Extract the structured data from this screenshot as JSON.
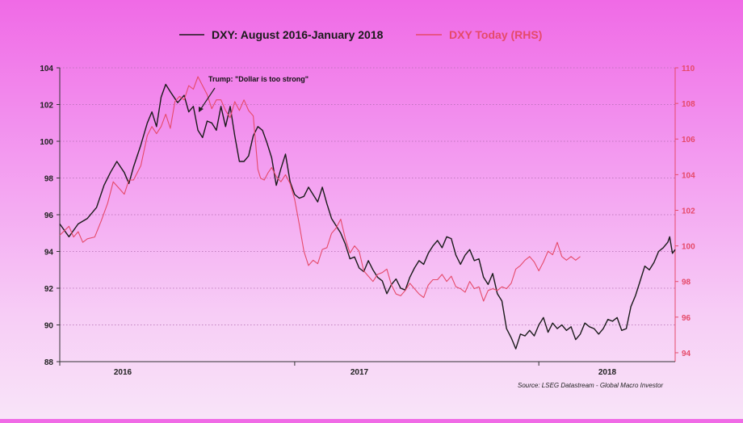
{
  "chart_data": {
    "type": "line",
    "legend": {
      "placement": "top-center"
    },
    "series": [
      {
        "name": "DXY: August 2016-January 2018",
        "color": "#1a1a1a",
        "axis": "left",
        "points": [
          [
            0,
            95.5
          ],
          [
            10,
            94.8
          ],
          [
            20,
            95.5
          ],
          [
            30,
            95.8
          ],
          [
            40,
            96.4
          ],
          [
            48,
            97.6
          ],
          [
            55,
            98.3
          ],
          [
            62,
            98.9
          ],
          [
            70,
            98.3
          ],
          [
            75,
            97.7
          ],
          [
            80,
            98.6
          ],
          [
            88,
            99.8
          ],
          [
            95,
            101.0
          ],
          [
            100,
            101.6
          ],
          [
            105,
            100.8
          ],
          [
            110,
            102.4
          ],
          [
            115,
            103.1
          ],
          [
            120,
            102.7
          ],
          [
            128,
            102.1
          ],
          [
            135,
            102.5
          ],
          [
            140,
            101.6
          ],
          [
            145,
            101.9
          ],
          [
            150,
            100.6
          ],
          [
            155,
            100.2
          ],
          [
            160,
            101.1
          ],
          [
            165,
            101.0
          ],
          [
            170,
            100.6
          ],
          [
            175,
            101.9
          ],
          [
            180,
            100.8
          ],
          [
            185,
            101.9
          ],
          [
            190,
            100.3
          ],
          [
            195,
            98.9
          ],
          [
            200,
            98.9
          ],
          [
            205,
            99.2
          ],
          [
            210,
            100.3
          ],
          [
            215,
            100.8
          ],
          [
            220,
            100.6
          ],
          [
            225,
            99.9
          ],
          [
            230,
            99.1
          ],
          [
            235,
            97.6
          ],
          [
            240,
            98.5
          ],
          [
            245,
            99.3
          ],
          [
            250,
            97.8
          ],
          [
            255,
            97.1
          ],
          [
            260,
            96.9
          ],
          [
            265,
            97.0
          ],
          [
            270,
            97.5
          ],
          [
            275,
            97.1
          ],
          [
            280,
            96.7
          ],
          [
            285,
            97.5
          ],
          [
            290,
            96.6
          ],
          [
            295,
            95.8
          ],
          [
            300,
            95.4
          ],
          [
            305,
            95.0
          ],
          [
            310,
            94.4
          ],
          [
            315,
            93.6
          ],
          [
            320,
            93.7
          ],
          [
            325,
            93.1
          ],
          [
            330,
            92.9
          ],
          [
            335,
            93.5
          ],
          [
            340,
            93.0
          ],
          [
            345,
            92.6
          ],
          [
            350,
            92.4
          ],
          [
            355,
            91.7
          ],
          [
            360,
            92.2
          ],
          [
            365,
            92.5
          ],
          [
            370,
            92.0
          ],
          [
            375,
            91.9
          ],
          [
            380,
            92.6
          ],
          [
            385,
            93.1
          ],
          [
            390,
            93.5
          ],
          [
            395,
            93.3
          ],
          [
            400,
            93.9
          ],
          [
            405,
            94.3
          ],
          [
            410,
            94.6
          ],
          [
            415,
            94.2
          ],
          [
            420,
            94.8
          ],
          [
            425,
            94.7
          ],
          [
            430,
            93.8
          ],
          [
            435,
            93.3
          ],
          [
            440,
            93.8
          ],
          [
            445,
            94.1
          ],
          [
            450,
            93.5
          ],
          [
            455,
            93.6
          ],
          [
            460,
            92.6
          ],
          [
            465,
            92.2
          ],
          [
            470,
            92.8
          ],
          [
            475,
            91.7
          ],
          [
            480,
            91.3
          ],
          [
            485,
            89.8
          ],
          [
            490,
            89.3
          ],
          [
            495,
            88.7
          ],
          [
            500,
            89.5
          ],
          [
            505,
            89.4
          ],
          [
            510,
            89.7
          ],
          [
            515,
            89.4
          ],
          [
            520,
            90.0
          ],
          [
            525,
            90.4
          ],
          [
            530,
            89.6
          ],
          [
            535,
            90.1
          ],
          [
            540,
            89.8
          ],
          [
            545,
            90.0
          ],
          [
            550,
            89.7
          ],
          [
            555,
            89.9
          ],
          [
            560,
            89.2
          ],
          [
            565,
            89.5
          ],
          [
            570,
            90.1
          ],
          [
            575,
            89.9
          ],
          [
            580,
            89.8
          ],
          [
            585,
            89.5
          ],
          [
            590,
            89.8
          ],
          [
            595,
            90.3
          ],
          [
            600,
            90.2
          ],
          [
            605,
            90.4
          ],
          [
            610,
            89.7
          ],
          [
            615,
            89.8
          ],
          [
            620,
            91.0
          ],
          [
            625,
            91.6
          ],
          [
            630,
            92.4
          ],
          [
            635,
            93.2
          ],
          [
            640,
            93.0
          ],
          [
            645,
            93.4
          ],
          [
            650,
            94.0
          ],
          [
            655,
            94.2
          ],
          [
            660,
            94.5
          ],
          [
            662,
            94.8
          ],
          [
            665,
            93.9
          ],
          [
            668,
            94.1
          ]
        ]
      },
      {
        "name": "DXY Today (RHS)",
        "color": "#e54a6a",
        "axis": "right",
        "points": [
          [
            0,
            100.6
          ],
          [
            10,
            101.1
          ],
          [
            15,
            100.5
          ],
          [
            20,
            100.8
          ],
          [
            25,
            100.2
          ],
          [
            30,
            100.4
          ],
          [
            38,
            100.5
          ],
          [
            45,
            101.4
          ],
          [
            52,
            102.4
          ],
          [
            58,
            103.6
          ],
          [
            65,
            103.2
          ],
          [
            70,
            102.9
          ],
          [
            75,
            103.7
          ],
          [
            80,
            103.7
          ],
          [
            88,
            104.5
          ],
          [
            95,
            106.2
          ],
          [
            100,
            106.7
          ],
          [
            105,
            106.3
          ],
          [
            110,
            106.7
          ],
          [
            115,
            107.4
          ],
          [
            120,
            106.6
          ],
          [
            125,
            108.1
          ],
          [
            130,
            108.4
          ],
          [
            135,
            108.2
          ],
          [
            140,
            109.0
          ],
          [
            145,
            108.8
          ],
          [
            150,
            109.5
          ],
          [
            155,
            109.0
          ],
          [
            160,
            108.5
          ],
          [
            165,
            107.7
          ],
          [
            170,
            108.2
          ],
          [
            175,
            108.2
          ],
          [
            180,
            107.6
          ],
          [
            185,
            107.2
          ],
          [
            190,
            108.1
          ],
          [
            195,
            107.6
          ],
          [
            200,
            108.2
          ],
          [
            205,
            107.6
          ],
          [
            210,
            107.3
          ],
          [
            215,
            104.3
          ],
          [
            218,
            103.8
          ],
          [
            222,
            103.7
          ],
          [
            226,
            104.1
          ],
          [
            230,
            104.4
          ],
          [
            235,
            103.9
          ],
          [
            240,
            103.6
          ],
          [
            245,
            104.0
          ],
          [
            250,
            103.5
          ],
          [
            255,
            102.6
          ],
          [
            260,
            101.2
          ],
          [
            265,
            99.7
          ],
          [
            270,
            98.9
          ],
          [
            275,
            99.2
          ],
          [
            280,
            99.0
          ],
          [
            285,
            99.8
          ],
          [
            290,
            99.9
          ],
          [
            295,
            100.7
          ],
          [
            300,
            101.0
          ],
          [
            305,
            101.5
          ],
          [
            310,
            100.4
          ],
          [
            315,
            99.6
          ],
          [
            320,
            100.0
          ],
          [
            325,
            99.7
          ],
          [
            330,
            98.6
          ],
          [
            335,
            98.3
          ],
          [
            340,
            98.0
          ],
          [
            345,
            98.4
          ],
          [
            350,
            98.5
          ],
          [
            355,
            98.7
          ],
          [
            360,
            97.8
          ],
          [
            365,
            97.3
          ],
          [
            370,
            97.2
          ],
          [
            375,
            97.5
          ],
          [
            380,
            97.9
          ],
          [
            385,
            97.6
          ],
          [
            390,
            97.3
          ],
          [
            395,
            97.1
          ],
          [
            400,
            97.8
          ],
          [
            405,
            98.1
          ],
          [
            410,
            98.1
          ],
          [
            415,
            98.4
          ],
          [
            420,
            98.0
          ],
          [
            425,
            98.3
          ],
          [
            430,
            97.7
          ],
          [
            435,
            97.6
          ],
          [
            440,
            97.4
          ],
          [
            445,
            98.0
          ],
          [
            450,
            97.6
          ],
          [
            455,
            97.7
          ],
          [
            460,
            96.9
          ],
          [
            465,
            97.5
          ],
          [
            470,
            97.6
          ],
          [
            475,
            97.5
          ],
          [
            480,
            97.7
          ],
          [
            485,
            97.6
          ],
          [
            490,
            97.9
          ],
          [
            495,
            98.7
          ],
          [
            500,
            98.9
          ],
          [
            505,
            99.2
          ],
          [
            510,
            99.4
          ],
          [
            515,
            99.1
          ],
          [
            520,
            98.6
          ],
          [
            525,
            99.1
          ],
          [
            530,
            99.7
          ],
          [
            535,
            99.5
          ],
          [
            540,
            100.2
          ],
          [
            545,
            99.4
          ],
          [
            550,
            99.2
          ],
          [
            555,
            99.4
          ],
          [
            560,
            99.2
          ],
          [
            565,
            99.4
          ]
        ]
      }
    ],
    "x_axis": {
      "range": [
        0,
        668
      ],
      "unit": "trading days",
      "ticks": [
        {
          "value": 0,
          "label": "2016"
        },
        {
          "value": 255,
          "label": "2017"
        },
        {
          "value": 520,
          "label": "2018"
        }
      ]
    },
    "y_left": {
      "range": [
        88,
        104
      ],
      "ticks": [
        88,
        90,
        92,
        94,
        96,
        98,
        100,
        102,
        104
      ]
    },
    "y_right": {
      "range": [
        93.5,
        110
      ],
      "ticks": [
        94,
        96,
        98,
        100,
        102,
        104,
        106,
        108,
        110
      ]
    },
    "grid": "horizontal dashed",
    "annotation": {
      "text": "Trump: \"Dollar is too strong\"",
      "x": 150,
      "y": 102.9
    },
    "source": "Source: LSEG Datastream - Global Macro Investor"
  },
  "labels": {
    "legend_black": "DXY: August 2016-January 2018",
    "legend_red": "DXY Today (RHS)",
    "annotation": "Trump: \"Dollar is too strong\"",
    "source": "Source: LSEG Datastream - Global Macro Investor"
  }
}
